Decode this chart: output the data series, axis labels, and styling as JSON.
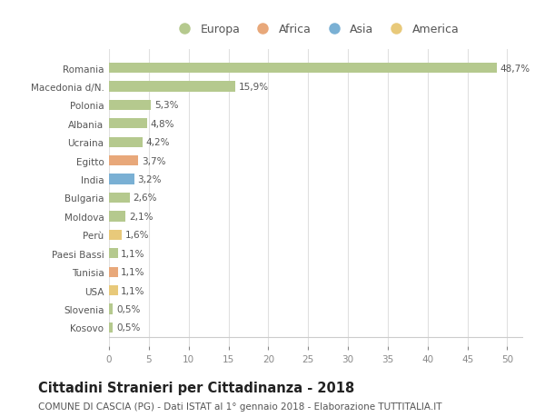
{
  "categories": [
    "Kosovo",
    "Slovenia",
    "USA",
    "Tunisia",
    "Paesi Bassi",
    "Perù",
    "Moldova",
    "Bulgaria",
    "India",
    "Egitto",
    "Ucraina",
    "Albania",
    "Polonia",
    "Macedonia d/N.",
    "Romania"
  ],
  "values": [
    0.5,
    0.5,
    1.1,
    1.1,
    1.1,
    1.6,
    2.1,
    2.6,
    3.2,
    3.7,
    4.2,
    4.8,
    5.3,
    15.9,
    48.7
  ],
  "labels": [
    "0,5%",
    "0,5%",
    "1,1%",
    "1,1%",
    "1,1%",
    "1,6%",
    "2,1%",
    "2,6%",
    "3,2%",
    "3,7%",
    "4,2%",
    "4,8%",
    "5,3%",
    "15,9%",
    "48,7%"
  ],
  "colors": [
    "#b5c98e",
    "#b5c98e",
    "#e8c97a",
    "#e8a87a",
    "#b5c98e",
    "#e8c97a",
    "#b5c98e",
    "#b5c98e",
    "#7ab0d4",
    "#e8a87a",
    "#b5c98e",
    "#b5c98e",
    "#b5c98e",
    "#b5c98e",
    "#b5c98e"
  ],
  "legend": [
    {
      "label": "Europa",
      "color": "#b5c98e"
    },
    {
      "label": "Africa",
      "color": "#e8a87a"
    },
    {
      "label": "Asia",
      "color": "#7ab0d4"
    },
    {
      "label": "America",
      "color": "#e8c97a"
    }
  ],
  "xlim": [
    0,
    52
  ],
  "xticks": [
    0,
    5,
    10,
    15,
    20,
    25,
    30,
    35,
    40,
    45,
    50
  ],
  "title": "Cittadini Stranieri per Cittadinanza - 2018",
  "subtitle": "COMUNE DI CASCIA (PG) - Dati ISTAT al 1° gennaio 2018 - Elaborazione TUTTITALIA.IT",
  "background_color": "#ffffff",
  "grid_color": "#e0e0e0",
  "bar_height": 0.55,
  "title_fontsize": 10.5,
  "subtitle_fontsize": 7.5,
  "label_fontsize": 7.5,
  "tick_fontsize": 7.5,
  "legend_fontsize": 9
}
